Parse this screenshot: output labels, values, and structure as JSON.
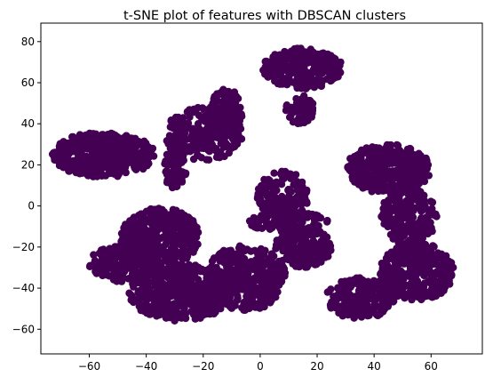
{
  "chart_data": {
    "type": "scatter",
    "title": "t-SNE plot of features with DBSCAN clusters",
    "xlabel": "",
    "ylabel": "",
    "xlim": [
      -77,
      78
    ],
    "ylim": [
      -72,
      89
    ],
    "x_ticks": [
      -60,
      -40,
      -20,
      0,
      20,
      40,
      60
    ],
    "y_ticks": [
      -60,
      -40,
      -20,
      0,
      20,
      40,
      60,
      80
    ],
    "grid": false,
    "legend": "none",
    "point_color": "#440154",
    "series": [
      {
        "cluster": 0,
        "description_regions": [
          {
            "cx": -55,
            "cy": 25,
            "rx": 18,
            "ry": 11,
            "n": 420
          },
          {
            "cx": -20,
            "cy": 35,
            "rx": 14,
            "ry": 13,
            "n": 260
          },
          {
            "cx": -12,
            "cy": 45,
            "rx": 6,
            "ry": 12,
            "n": 120
          },
          {
            "cx": 15,
            "cy": 67,
            "rx": 14,
            "ry": 10,
            "n": 260
          },
          {
            "cx": 14,
            "cy": 47,
            "rx": 5,
            "ry": 7,
            "n": 50
          },
          {
            "cx": -30,
            "cy": 18,
            "rx": 4,
            "ry": 10,
            "n": 60
          },
          {
            "cx": 8,
            "cy": 5,
            "rx": 9,
            "ry": 12,
            "n": 170
          },
          {
            "cx": -35,
            "cy": -15,
            "rx": 14,
            "ry": 14,
            "n": 380
          },
          {
            "cx": -48,
            "cy": -28,
            "rx": 12,
            "ry": 9,
            "n": 220
          },
          {
            "cx": -28,
            "cy": -42,
            "rx": 18,
            "ry": 14,
            "n": 520
          },
          {
            "cx": -5,
            "cy": -35,
            "rx": 14,
            "ry": 16,
            "n": 380
          },
          {
            "cx": 15,
            "cy": -20,
            "rx": 10,
            "ry": 10,
            "n": 180
          },
          {
            "cx": 10,
            "cy": -8,
            "rx": 14,
            "ry": 5,
            "n": 100
          },
          {
            "cx": 45,
            "cy": 18,
            "rx": 15,
            "ry": 12,
            "n": 380
          },
          {
            "cx": 52,
            "cy": -5,
            "rx": 10,
            "ry": 14,
            "n": 220
          },
          {
            "cx": 55,
            "cy": -32,
            "rx": 13,
            "ry": 14,
            "n": 340
          },
          {
            "cx": 35,
            "cy": -45,
            "rx": 12,
            "ry": 10,
            "n": 200
          }
        ]
      }
    ]
  }
}
